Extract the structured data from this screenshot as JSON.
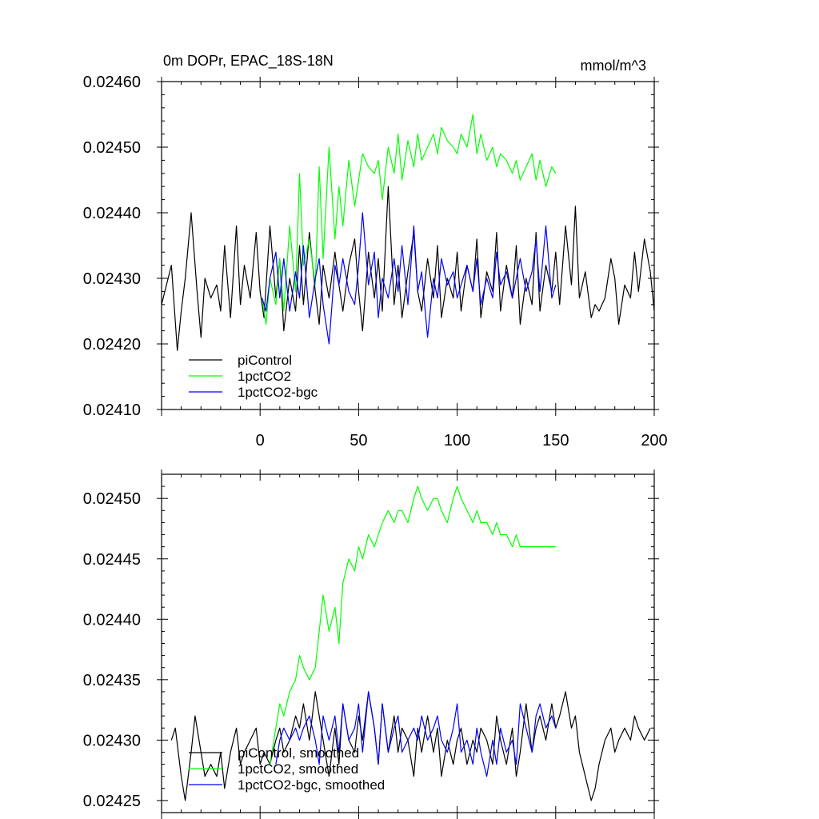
{
  "chart_data": [
    {
      "type": "line",
      "title": "0m DOPr, EPAC_18S-18N",
      "units": "mmol/m^3",
      "xlabel": "",
      "ylabel": "",
      "xlim": [
        -50,
        200
      ],
      "ylim": [
        0.0241,
        0.0246
      ],
      "xticks": [
        0,
        50,
        100,
        150,
        200
      ],
      "xtick_labels": [
        "0",
        "50",
        "100",
        "150",
        "200"
      ],
      "yticks": [
        0.0241,
        0.0242,
        0.0243,
        0.0244,
        0.0245,
        0.0246
      ],
      "ytick_labels": [
        "0.02410",
        "0.02420",
        "0.02430",
        "0.02440",
        "0.02450",
        "0.02460"
      ],
      "legend": "bottom-left",
      "series": [
        {
          "name": "piControl",
          "color": "#000000",
          "x": [
            -50,
            -45,
            -42,
            -40,
            -38,
            -35,
            -32,
            -30,
            -28,
            -25,
            -22,
            -20,
            -18,
            -15,
            -12,
            -10,
            -8,
            -5,
            -2,
            0,
            2,
            5,
            8,
            10,
            12,
            15,
            18,
            20,
            22,
            25,
            28,
            30,
            32,
            35,
            38,
            40,
            42,
            45,
            48,
            50,
            52,
            55,
            58,
            60,
            62,
            65,
            68,
            70,
            72,
            75,
            78,
            80,
            82,
            85,
            88,
            90,
            92,
            95,
            98,
            100,
            102,
            105,
            108,
            110,
            112,
            115,
            118,
            120,
            122,
            125,
            128,
            130,
            132,
            135,
            138,
            140,
            142,
            145,
            148,
            150,
            152,
            155,
            158,
            160,
            162,
            165,
            168,
            170,
            172,
            175,
            178,
            180,
            182,
            185,
            188,
            190,
            192,
            195,
            198,
            200
          ],
          "values": [
            0.02426,
            0.02432,
            0.02419,
            0.02425,
            0.0243,
            0.0244,
            0.02428,
            0.02421,
            0.0243,
            0.02427,
            0.02429,
            0.02425,
            0.02435,
            0.02424,
            0.02438,
            0.02426,
            0.02432,
            0.02427,
            0.02437,
            0.02428,
            0.02424,
            0.02438,
            0.02427,
            0.02433,
            0.02422,
            0.0243,
            0.02425,
            0.02435,
            0.02426,
            0.02437,
            0.02428,
            0.02423,
            0.02432,
            0.02427,
            0.02434,
            0.02429,
            0.02425,
            0.02432,
            0.02436,
            0.02428,
            0.02422,
            0.02434,
            0.02427,
            0.02433,
            0.02425,
            0.02444,
            0.02426,
            0.02432,
            0.02424,
            0.02431,
            0.02437,
            0.02428,
            0.02425,
            0.02433,
            0.02427,
            0.02435,
            0.02424,
            0.0243,
            0.02427,
            0.02434,
            0.02425,
            0.02432,
            0.02428,
            0.02436,
            0.02424,
            0.02431,
            0.02428,
            0.02437,
            0.02425,
            0.02432,
            0.02427,
            0.02435,
            0.02423,
            0.0243,
            0.02426,
            0.02437,
            0.02425,
            0.02432,
            0.02428,
            0.02434,
            0.02426,
            0.02438,
            0.02429,
            0.02441,
            0.02427,
            0.02431,
            0.02424,
            0.02426,
            0.02425,
            0.02427,
            0.02433,
            0.0243,
            0.02423,
            0.02429,
            0.02427,
            0.02434,
            0.02428,
            0.02436,
            0.02431,
            0.02425
          ]
        },
        {
          "name": "1pctCO2",
          "color": "#00ff00",
          "x": [
            1,
            3,
            5,
            8,
            10,
            12,
            15,
            18,
            20,
            22,
            25,
            28,
            30,
            32,
            35,
            38,
            40,
            42,
            45,
            48,
            50,
            52,
            55,
            58,
            60,
            62,
            65,
            68,
            70,
            72,
            75,
            78,
            80,
            82,
            85,
            88,
            90,
            92,
            95,
            98,
            100,
            102,
            105,
            108,
            110,
            112,
            115,
            118,
            120,
            122,
            125,
            128,
            130,
            132,
            135,
            138,
            140,
            142,
            145,
            148,
            150
          ],
          "values": [
            0.02427,
            0.02423,
            0.0243,
            0.02426,
            0.02433,
            0.02425,
            0.02438,
            0.02428,
            0.02446,
            0.02432,
            0.02436,
            0.02429,
            0.02447,
            0.02433,
            0.0245,
            0.02436,
            0.02444,
            0.02438,
            0.02448,
            0.02441,
            0.02445,
            0.02449,
            0.02447,
            0.02446,
            0.02448,
            0.02442,
            0.0245,
            0.02446,
            0.02452,
            0.02445,
            0.02451,
            0.02447,
            0.02452,
            0.02448,
            0.0245,
            0.02452,
            0.02449,
            0.02453,
            0.02451,
            0.0245,
            0.02449,
            0.02452,
            0.0245,
            0.02455,
            0.02449,
            0.02452,
            0.02448,
            0.0245,
            0.02447,
            0.02449,
            0.02448,
            0.02446,
            0.02448,
            0.02445,
            0.02447,
            0.02449,
            0.02445,
            0.02448,
            0.02444,
            0.02447,
            0.02446
          ]
        },
        {
          "name": "1pctCO2-bgc",
          "color": "#0000ff",
          "x": [
            1,
            3,
            5,
            8,
            10,
            12,
            15,
            18,
            20,
            22,
            25,
            28,
            30,
            32,
            35,
            38,
            40,
            42,
            45,
            48,
            50,
            52,
            55,
            58,
            60,
            62,
            65,
            68,
            70,
            72,
            75,
            78,
            80,
            82,
            85,
            88,
            90,
            92,
            95,
            98,
            100,
            102,
            105,
            108,
            110,
            112,
            115,
            118,
            120,
            122,
            125,
            128,
            130,
            132,
            135,
            138,
            140,
            142,
            145,
            148,
            150
          ],
          "values": [
            0.02427,
            0.02425,
            0.0243,
            0.02434,
            0.02427,
            0.02433,
            0.02425,
            0.02431,
            0.02427,
            0.02435,
            0.02424,
            0.0243,
            0.02433,
            0.02426,
            0.0242,
            0.02432,
            0.02429,
            0.02433,
            0.02428,
            0.02426,
            0.02432,
            0.0244,
            0.02429,
            0.02434,
            0.02424,
            0.0243,
            0.02427,
            0.02433,
            0.02428,
            0.02435,
            0.02426,
            0.02438,
            0.02428,
            0.02431,
            0.02421,
            0.0243,
            0.02427,
            0.02433,
            0.02429,
            0.02431,
            0.02427,
            0.02429,
            0.02432,
            0.02428,
            0.02433,
            0.02426,
            0.0243,
            0.02427,
            0.02434,
            0.02429,
            0.02431,
            0.02427,
            0.0243,
            0.02433,
            0.02428,
            0.02431,
            0.02436,
            0.02428,
            0.02438,
            0.02427,
            0.02429
          ]
        }
      ]
    },
    {
      "type": "line",
      "title": "",
      "xlabel": "",
      "ylabel": "",
      "xlim": [
        -50,
        200
      ],
      "ylim": [
        0.02424,
        0.02452
      ],
      "xticks": [
        0,
        50,
        100,
        150,
        200
      ],
      "yticks": [
        0.02425,
        0.0243,
        0.02435,
        0.0244,
        0.02445,
        0.0245
      ],
      "ytick_labels": [
        "0.02425",
        "0.02430",
        "0.02435",
        "0.02440",
        "0.02445",
        "0.02450"
      ],
      "legend": "bottom-left",
      "series": [
        {
          "name": "piControl, smoothed",
          "color": "#000000",
          "x": [
            -45,
            -43,
            -40,
            -38,
            -35,
            -33,
            -30,
            -28,
            -25,
            -22,
            -20,
            -18,
            -15,
            -12,
            -10,
            -8,
            -5,
            -2,
            0,
            2,
            5,
            8,
            10,
            12,
            15,
            18,
            20,
            22,
            25,
            28,
            30,
            32,
            35,
            38,
            40,
            42,
            45,
            48,
            50,
            52,
            55,
            58,
            60,
            62,
            65,
            68,
            70,
            72,
            75,
            78,
            80,
            82,
            85,
            88,
            90,
            92,
            95,
            98,
            100,
            102,
            105,
            108,
            110,
            112,
            115,
            118,
            120,
            122,
            125,
            128,
            130,
            132,
            135,
            138,
            140,
            142,
            145,
            148,
            150,
            152,
            155,
            158,
            160,
            162,
            165,
            168,
            170,
            172,
            175,
            178,
            180,
            182,
            185,
            188,
            190,
            192,
            195,
            198
          ],
          "values": [
            0.0243,
            0.02431,
            0.02427,
            0.02425,
            0.02429,
            0.02432,
            0.02429,
            0.02427,
            0.02428,
            0.02427,
            0.02429,
            0.02426,
            0.02429,
            0.02431,
            0.02428,
            0.02429,
            0.0243,
            0.02431,
            0.02428,
            0.02429,
            0.02428,
            0.0243,
            0.02431,
            0.02429,
            0.0243,
            0.02432,
            0.02431,
            0.02433,
            0.0243,
            0.02434,
            0.02432,
            0.0243,
            0.02427,
            0.02431,
            0.02428,
            0.02433,
            0.0243,
            0.02429,
            0.02432,
            0.0243,
            0.02434,
            0.02431,
            0.02428,
            0.02433,
            0.02429,
            0.02432,
            0.02429,
            0.02431,
            0.0243,
            0.02427,
            0.02431,
            0.02429,
            0.02432,
            0.02429,
            0.02431,
            0.02427,
            0.0243,
            0.02428,
            0.0243,
            0.02431,
            0.02428,
            0.0243,
            0.02429,
            0.02431,
            0.0243,
            0.02428,
            0.02432,
            0.0243,
            0.02428,
            0.02431,
            0.02427,
            0.02429,
            0.02433,
            0.02429,
            0.02431,
            0.02432,
            0.0243,
            0.02433,
            0.02431,
            0.02432,
            0.02434,
            0.02431,
            0.02432,
            0.02429,
            0.02427,
            0.02425,
            0.02426,
            0.02428,
            0.0243,
            0.02431,
            0.02429,
            0.0243,
            0.02431,
            0.0243,
            0.02432,
            0.02431,
            0.0243,
            0.02431
          ]
        },
        {
          "name": "1pctCO2, smoothed",
          "color": "#00ff00",
          "x": [
            5,
            8,
            10,
            12,
            15,
            18,
            20,
            22,
            25,
            28,
            30,
            32,
            35,
            38,
            40,
            42,
            45,
            48,
            50,
            52,
            55,
            58,
            60,
            62,
            65,
            68,
            70,
            72,
            75,
            78,
            80,
            82,
            85,
            88,
            90,
            92,
            95,
            98,
            100,
            102,
            105,
            108,
            110,
            112,
            115,
            118,
            120,
            122,
            125,
            128,
            130,
            132,
            135,
            138,
            140,
            142,
            145,
            148,
            150
          ],
          "values": [
            0.02428,
            0.02431,
            0.02433,
            0.02432,
            0.02434,
            0.02435,
            0.02437,
            0.02436,
            0.02435,
            0.02436,
            0.02439,
            0.02442,
            0.02439,
            0.02441,
            0.02438,
            0.02443,
            0.02445,
            0.02444,
            0.02446,
            0.02445,
            0.02447,
            0.02446,
            0.02447,
            0.02448,
            0.02449,
            0.02448,
            0.02449,
            0.02449,
            0.02448,
            0.0245,
            0.02451,
            0.0245,
            0.02449,
            0.0245,
            0.0245,
            0.02449,
            0.02448,
            0.0245,
            0.02451,
            0.0245,
            0.02449,
            0.02448,
            0.02449,
            0.02448,
            0.02448,
            0.02447,
            0.02448,
            0.02447,
            0.02447,
            0.02446,
            0.02447,
            0.02446,
            0.02446,
            0.02446,
            0.02446,
            0.02446,
            0.02446,
            0.02446,
            0.02446
          ]
        },
        {
          "name": "1pctCO2-bgc, smoothed",
          "color": "#0000ff",
          "x": [
            8,
            10,
            12,
            15,
            18,
            20,
            22,
            25,
            28,
            30,
            32,
            35,
            38,
            40,
            42,
            45,
            48,
            50,
            52,
            55,
            58,
            60,
            62,
            65,
            68,
            70,
            72,
            75,
            78,
            80,
            82,
            85,
            88,
            90,
            92,
            95,
            98,
            100,
            102,
            105,
            108,
            110,
            112,
            115,
            118,
            120,
            122,
            125,
            128,
            130,
            132,
            135,
            138,
            140,
            142,
            145,
            148,
            150
          ],
          "values": [
            0.02428,
            0.0243,
            0.02431,
            0.0243,
            0.02431,
            0.0243,
            0.02431,
            0.02432,
            0.0243,
            0.02428,
            0.02432,
            0.0243,
            0.02432,
            0.02429,
            0.02433,
            0.0243,
            0.02431,
            0.02433,
            0.02429,
            0.02434,
            0.02431,
            0.02428,
            0.02433,
            0.02429,
            0.02431,
            0.02432,
            0.02429,
            0.0243,
            0.02431,
            0.0243,
            0.02432,
            0.0243,
            0.02431,
            0.02432,
            0.0243,
            0.02429,
            0.02431,
            0.02433,
            0.02429,
            0.0243,
            0.02428,
            0.02431,
            0.02429,
            0.02427,
            0.0243,
            0.02428,
            0.02431,
            0.02429,
            0.0243,
            0.02428,
            0.02433,
            0.02431,
            0.02429,
            0.02432,
            0.02433,
            0.02431,
            0.02432,
            0.02431
          ]
        }
      ]
    }
  ]
}
